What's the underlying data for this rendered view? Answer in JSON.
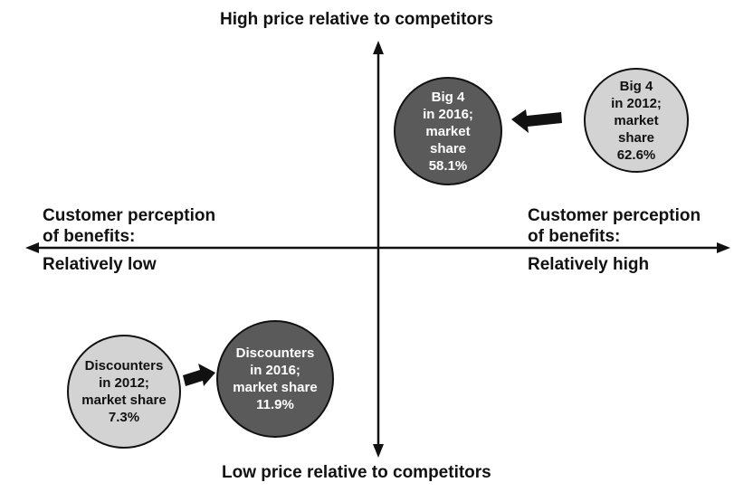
{
  "axes": {
    "top": "High price relative to competitors",
    "bottom": "Low price relative to competitors",
    "left": [
      "Customer perception",
      "of benefits:",
      "Relatively low"
    ],
    "right": [
      "Customer perception",
      "of benefits:",
      "Relatively high"
    ]
  },
  "bubbles": {
    "big4_2016": [
      "Big 4",
      "in 2016;",
      "market",
      "share",
      "58.1%"
    ],
    "big4_2012": [
      "Big 4",
      "in 2012;",
      "market",
      "share",
      "62.6%"
    ],
    "disc_2012": [
      "Discounters",
      "in 2012;",
      "market share",
      "7.3%"
    ],
    "disc_2016": [
      "Discounters",
      "in 2016;",
      "market share",
      "11.9%"
    ]
  },
  "colors": {
    "light_fill": "#d3d3d3",
    "dark_fill": "#5a5a5a",
    "line": "#111111"
  }
}
